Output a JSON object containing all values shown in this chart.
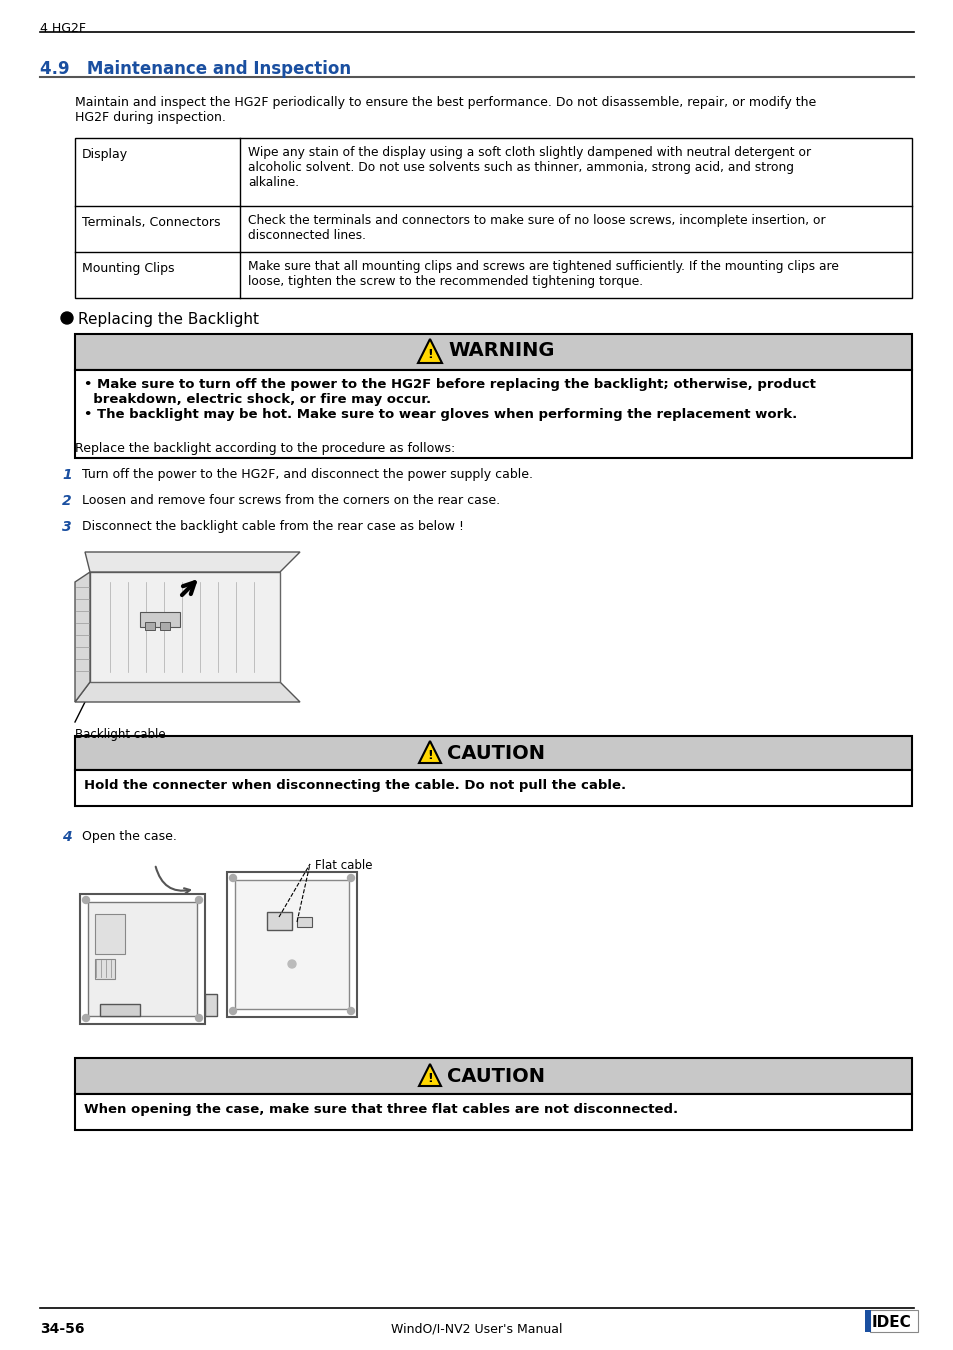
{
  "header_text": "4 HG2F",
  "section_title": "4.9   Maintenance and Inspection",
  "intro_text": "Maintain and inspect the HG2F periodically to ensure the best performance. Do not disassemble, repair, or modify the\nHG2F during inspection.",
  "table_rows": [
    {
      "label": "Display",
      "content": "Wipe any stain of the display using a soft cloth slightly dampened with neutral detergent or\nalcoholic solvent. Do not use solvents such as thinner, ammonia, strong acid, and strong\nalkaline."
    },
    {
      "label": "Terminals, Connectors",
      "content": "Check the terminals and connectors to make sure of no loose screws, incomplete insertion, or\ndisconnected lines."
    },
    {
      "label": "Mounting Clips",
      "content": "Make sure that all mounting clips and screws are tightened sufficiently. If the mounting clips are\nloose, tighten the screw to the recommended tightening torque."
    }
  ],
  "replacing_backlight": " Replacing the Backlight",
  "warning_title": "WARNING",
  "warning_bullet1": "Make sure to turn off the power to the HG2F before replacing the backlight; otherwise, product\n  breakdown, electric shock, or fire may occur.",
  "warning_bullet2": "The backlight may be hot. Make sure to wear gloves when performing the replacement work.",
  "replace_instruction": "Replace the backlight according to the procedure as follows:",
  "step1": "Turn off the power to the HG2F, and disconnect the power supply cable.",
  "step2": "Loosen and remove four screws from the corners on the rear case.",
  "step3": "Disconnect the backlight cable from the rear case as below !",
  "backlight_cable_label": "Backlight cable",
  "caution1_title": "CAUTION",
  "caution1_text": "Hold the connecter when disconnecting the cable. Do not pull the cable.",
  "step4_text": "Open the case.",
  "flat_cable_label": "Flat cable",
  "caution2_title": "CAUTION",
  "caution2_text": "When opening the case, make sure that three flat cables are not disconnected.",
  "footer_page": "34-56",
  "footer_manual": "WindO/I-NV2 User's Manual",
  "footer_brand": "IDEC",
  "bg_color": "#ffffff",
  "warning_bg": "#c8c8c8",
  "caution_bg": "#c8c8c8",
  "section_color": "#1a4fa0"
}
